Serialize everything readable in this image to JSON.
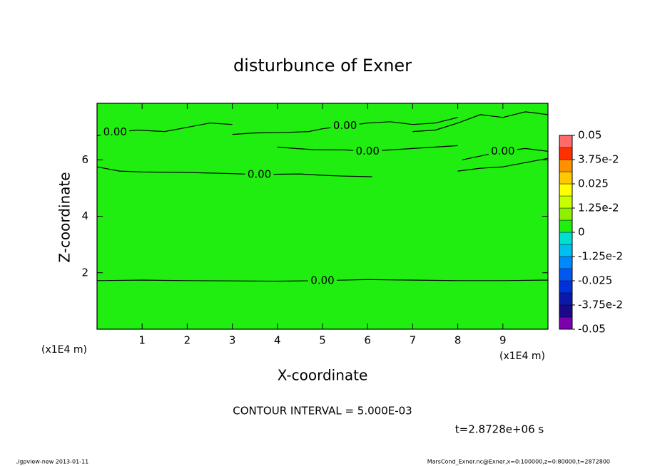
{
  "chart_data": {
    "type": "contour",
    "title": "disturbunce of Exner",
    "xlabel": "X-coordinate",
    "ylabel": "Z-coordinate",
    "xunit": "(x1E4 m)",
    "yunit": "(x1E4 m)",
    "xlim": [
      0,
      10
    ],
    "ylim": [
      0,
      8
    ],
    "xticks": [
      1,
      2,
      3,
      4,
      5,
      6,
      7,
      8,
      9
    ],
    "yticks": [
      2,
      4,
      6
    ],
    "contour_interval": "CONTOUR INTERVAL = 5.000E-03",
    "time": "t=2.8728e+06 s",
    "footer_left": "./gpview-new  2013-01-11",
    "footer_right": "MarsCond_Exner.nc@Exner,x=0:100000,z=0:80000,t=2872800",
    "field_level": 0,
    "clevels": [
      -0.05,
      -0.04375,
      -0.0375,
      -0.03125,
      -0.025,
      -0.01875,
      -0.0125,
      -0.00625,
      0,
      0.00625,
      0.0125,
      0.01875,
      0.025,
      0.03125,
      0.0375,
      0.04375,
      0.05
    ],
    "colors": [
      "#7a00b0",
      "#1a0a8a",
      "#0a1aa8",
      "#0030d8",
      "#0058f0",
      "#0088ff",
      "#00bff0",
      "#00e0d0",
      "#20ee10",
      "#8cf000",
      "#c8ff00",
      "#ffff00",
      "#ffc800",
      "#ff9000",
      "#ff3000",
      "#ff6a6a"
    ],
    "cticks": [
      -0.05,
      {
        "value": -0.0375,
        "label": "-3.75e-2"
      },
      -0.025,
      {
        "value": -0.0125,
        "label": "-1.25e-2"
      },
      0,
      {
        "value": 0.0125,
        "label": "1.25e-2"
      },
      0.025,
      {
        "value": 0.0375,
        "label": "3.75e-2"
      },
      0.05
    ],
    "contours": [
      {
        "level": 0,
        "label": "0.00",
        "x": [
          0,
          1,
          2,
          3,
          4,
          5,
          6,
          7,
          8,
          9,
          10
        ],
        "y": [
          1.72,
          1.74,
          1.72,
          1.71,
          1.7,
          1.72,
          1.76,
          1.74,
          1.72,
          1.72,
          1.74
        ]
      },
      {
        "level": 0,
        "label": "0.00",
        "x": [
          0,
          0.5,
          1,
          2,
          2.8,
          3.6,
          4.5,
          5,
          5.5,
          6.1
        ],
        "y": [
          5.75,
          5.6,
          5.57,
          5.55,
          5.52,
          5.48,
          5.5,
          5.45,
          5.42,
          5.4
        ]
      },
      {
        "level": 0,
        "x": [
          8,
          8.5,
          9,
          9.5,
          10
        ],
        "y": [
          5.6,
          5.7,
          5.75,
          5.9,
          6.05
        ]
      },
      {
        "level": 0,
        "label": "0.00",
        "x": [
          0,
          0.4,
          0.9
        ],
        "y": [
          6.85,
          6.98,
          7.05
        ]
      },
      {
        "level": 0,
        "x": [
          0.9,
          1.5,
          2,
          2.5,
          3
        ],
        "y": [
          7.05,
          7.0,
          7.15,
          7.3,
          7.25
        ]
      },
      {
        "level": 0,
        "label": "0.00",
        "x": [
          3,
          3.5,
          4.2,
          4.7,
          5,
          5.5,
          6,
          6.5,
          7,
          7.5,
          8
        ],
        "y": [
          6.9,
          6.95,
          6.97,
          7.0,
          7.1,
          7.2,
          7.3,
          7.35,
          7.25,
          7.3,
          7.5
        ]
      },
      {
        "level": 0,
        "label": "0.00",
        "x": [
          4,
          4.4,
          4.8,
          5.5,
          6,
          6.5,
          7,
          7.5,
          8
        ],
        "y": [
          6.45,
          6.4,
          6.36,
          6.35,
          6.3,
          6.35,
          6.4,
          6.45,
          6.5
        ]
      },
      {
        "level": 0,
        "label": "0.00",
        "x": [
          8.1,
          8.4,
          8.7,
          9,
          9.5,
          10
        ],
        "y": [
          6.0,
          6.1,
          6.2,
          6.3,
          6.4,
          6.3
        ]
      },
      {
        "level": 0,
        "x": [
          7,
          7.5,
          8,
          8.5,
          9,
          9.5,
          10
        ],
        "y": [
          7.0,
          7.05,
          7.3,
          7.6,
          7.5,
          7.7,
          7.6
        ]
      }
    ]
  }
}
